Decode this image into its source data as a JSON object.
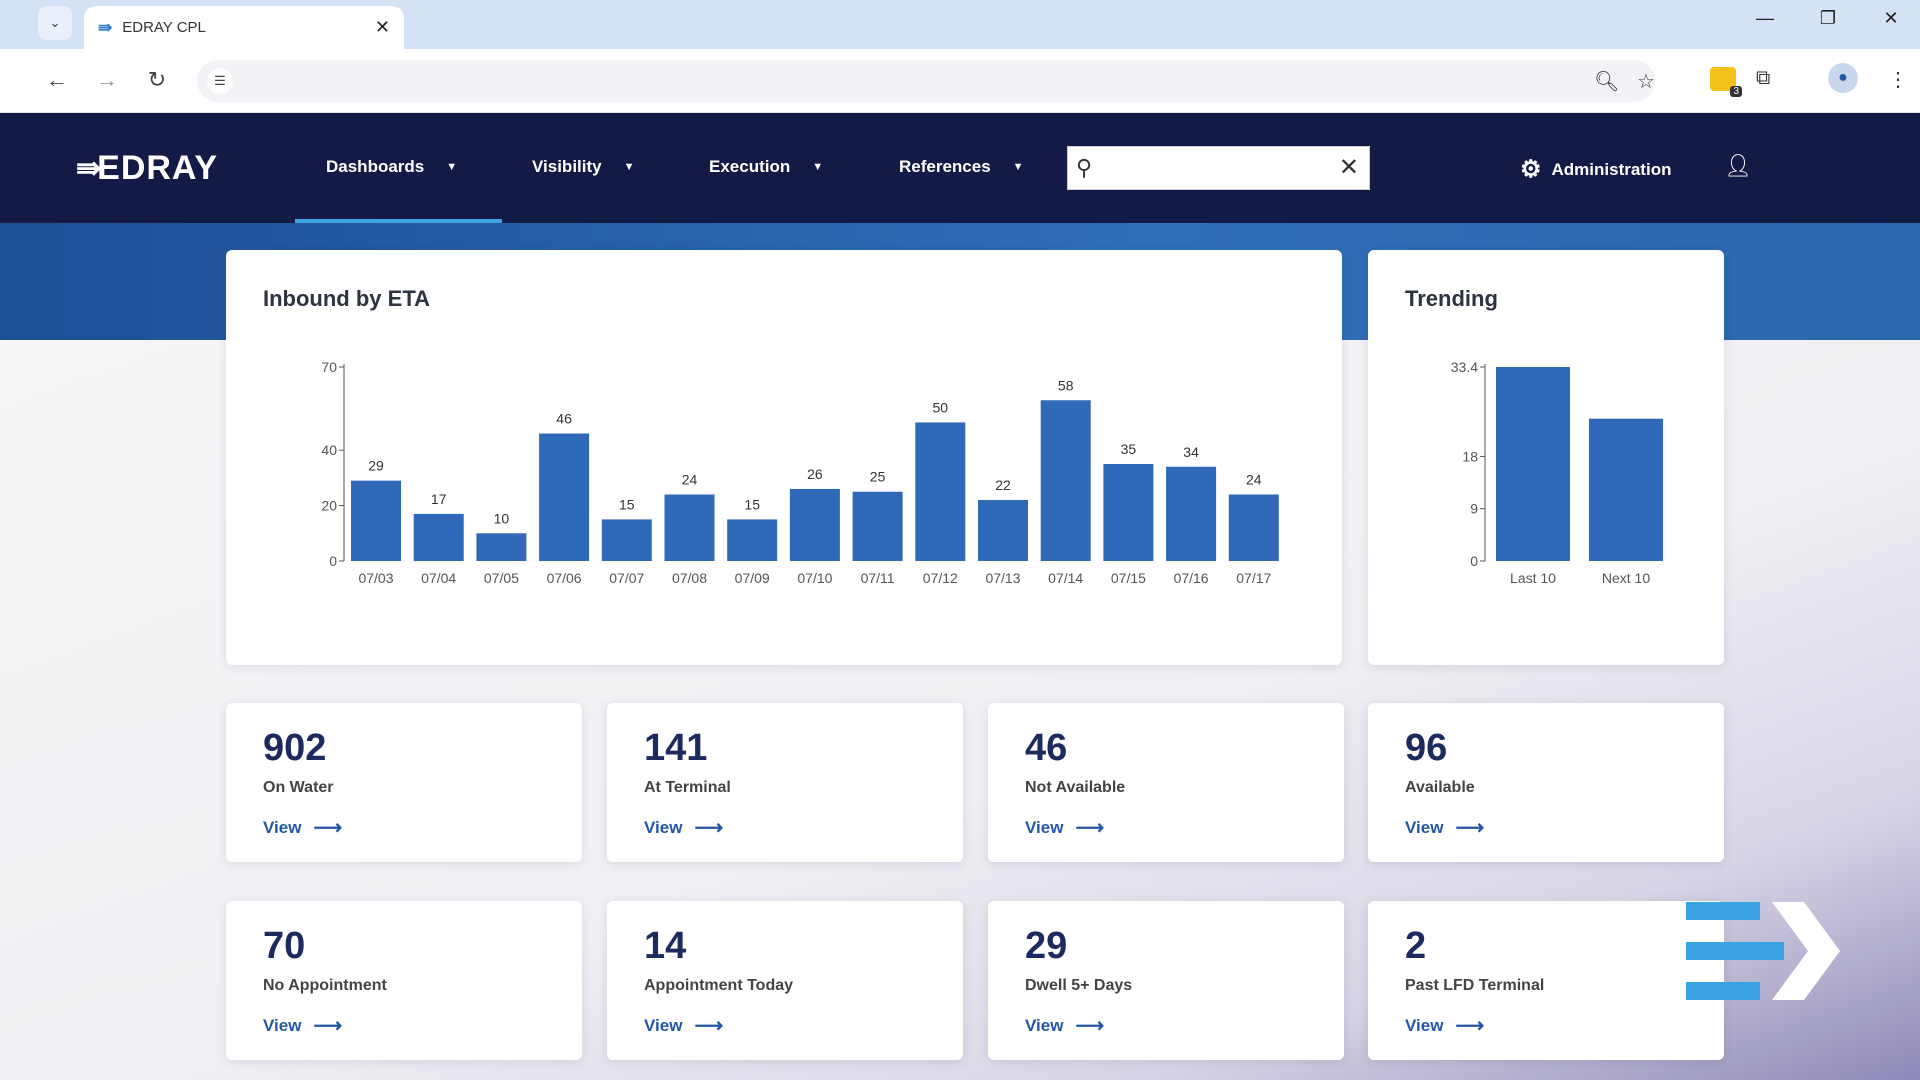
{
  "browser": {
    "tab_title": "EDRAY CPL",
    "tab_logo": "⇛",
    "ext_badge_count": "3"
  },
  "nav": {
    "brand": "EDRAY",
    "menus": [
      {
        "label": "Dashboards"
      },
      {
        "label": "Visibility"
      },
      {
        "label": "Execution"
      },
      {
        "label": "References"
      }
    ],
    "search_placeholder": "",
    "admin_label": "Administration"
  },
  "inbound": {
    "title": "Inbound by ETA"
  },
  "trending": {
    "title": "Trending"
  },
  "chart_data": [
    {
      "type": "bar",
      "title": "Inbound by ETA",
      "categories": [
        "07/03",
        "07/04",
        "07/05",
        "07/06",
        "07/07",
        "07/08",
        "07/09",
        "07/10",
        "07/11",
        "07/12",
        "07/13",
        "07/14",
        "07/15",
        "07/16",
        "07/17"
      ],
      "values": [
        29,
        17,
        10,
        46,
        15,
        24,
        15,
        26,
        25,
        50,
        22,
        58,
        35,
        34,
        24
      ],
      "y_ticks": [
        "0",
        "20",
        "40",
        "70"
      ],
      "ylim": [
        0,
        70
      ],
      "color": "#2f69b7",
      "data_labels": true
    },
    {
      "type": "bar",
      "title": "Trending",
      "categories": [
        "Last 10",
        "Next 10"
      ],
      "values": [
        33.4,
        24.5
      ],
      "y_ticks": [
        "0",
        "9",
        "18",
        "33.4"
      ],
      "ylim": [
        0,
        33.4
      ],
      "color": "#2f69b7",
      "data_labels": false
    }
  ],
  "stats": [
    {
      "value": "902",
      "label": "On Water",
      "link": "View"
    },
    {
      "value": "141",
      "label": "At Terminal",
      "link": "View"
    },
    {
      "value": "46",
      "label": "Not Available",
      "link": "View"
    },
    {
      "value": "96",
      "label": "Available",
      "link": "View"
    },
    {
      "value": "70",
      "label": "No Appointment",
      "link": "View"
    },
    {
      "value": "14",
      "label": "Appointment Today",
      "link": "View"
    },
    {
      "value": "29",
      "label": "Dwell 5+ Days",
      "link": "View"
    },
    {
      "value": "2",
      "label": "Past LFD Terminal",
      "link": "View"
    }
  ],
  "colors": {
    "navy": "#131a45",
    "accent": "#3fa3e6",
    "bar": "#2f69b7",
    "link": "#2357a5"
  }
}
